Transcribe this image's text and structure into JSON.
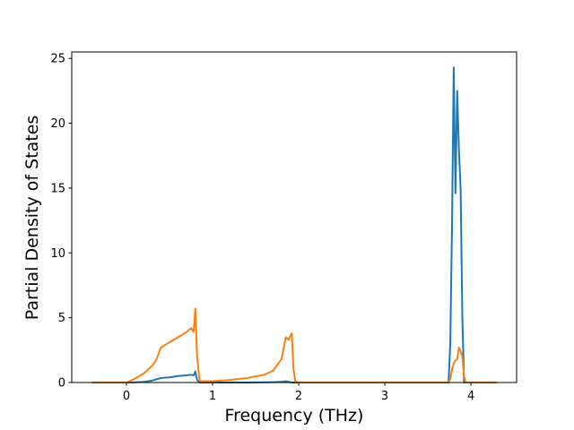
{
  "chart_data": {
    "type": "line",
    "x_label": "Frequency (THz)",
    "y_label": "Partial Density of States",
    "x": [
      -0.4,
      0,
      0.1,
      0.2,
      0.3,
      0.35,
      0.4,
      0.5,
      0.6,
      0.7,
      0.75,
      0.78,
      0.8,
      0.82,
      0.85,
      1.0,
      1.2,
      1.4,
      1.6,
      1.7,
      1.8,
      1.85,
      1.88,
      1.92,
      1.94,
      1.96,
      2.0,
      3.0,
      3.74,
      3.76,
      3.78,
      3.8,
      3.82,
      3.84,
      3.86,
      3.88,
      3.9,
      3.92,
      3.94,
      4.0,
      4.3
    ],
    "series": [
      {
        "color": "#1f77b4",
        "values": [
          0,
          0,
          0.02,
          0.05,
          0.15,
          0.25,
          0.35,
          0.4,
          0.5,
          0.55,
          0.6,
          0.55,
          0.85,
          0.2,
          0,
          0,
          0,
          0,
          0.02,
          0.03,
          0.05,
          0.1,
          0.05,
          0,
          0,
          0,
          0,
          0,
          0,
          3,
          12,
          24.3,
          14.6,
          22.5,
          18,
          15,
          5,
          0,
          0,
          0,
          0
        ]
      },
      {
        "color": "#ff7f0e",
        "values": [
          0,
          0,
          0.3,
          0.7,
          1.3,
          1.8,
          2.7,
          3.1,
          3.5,
          3.9,
          4.2,
          3.9,
          5.7,
          2,
          0.1,
          0.1,
          0.2,
          0.35,
          0.6,
          0.9,
          1.8,
          3.5,
          3.3,
          3.8,
          1,
          0.1,
          0,
          0,
          0,
          0.3,
          1,
          1.5,
          1.7,
          1.8,
          2.7,
          2.4,
          2.0,
          0.5,
          0,
          0,
          0
        ]
      }
    ],
    "xlim": [
      -0.635,
      4.53
    ],
    "xticks": [
      0,
      1,
      2,
      3,
      4
    ],
    "ylim": [
      0,
      25.5
    ],
    "yticks": [
      0,
      5,
      10,
      15,
      20,
      25
    ]
  }
}
